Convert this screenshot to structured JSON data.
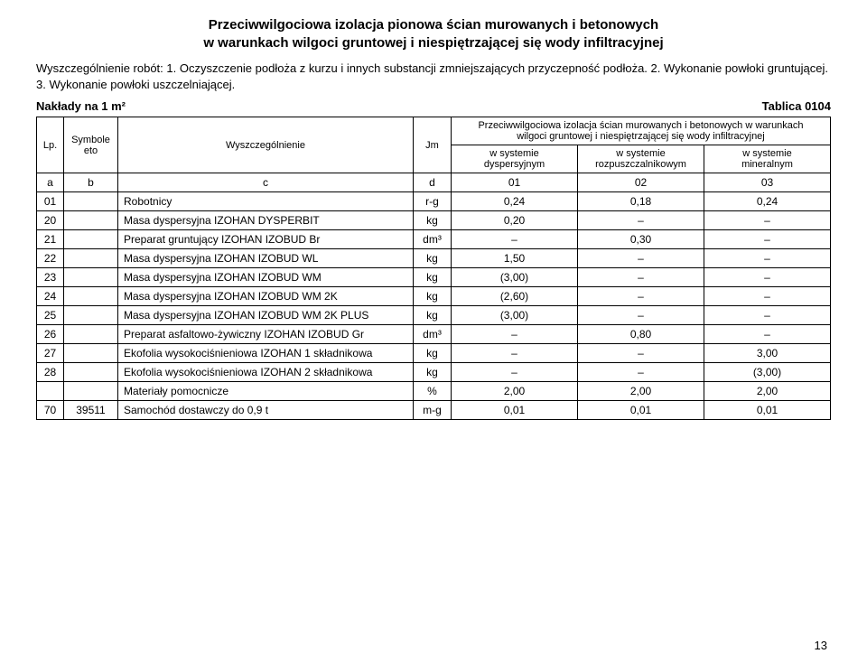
{
  "title_l1": "Przeciwwilgociowa izolacja pionowa ścian murowanych i betonowych",
  "title_l2": "w warunkach wilgoci gruntowej i niespiętrzającej się wody infiltracyjnej",
  "desc": "Wyszczególnienie robót: 1. Oczyszczenie podłoża z kurzu i innych substancji zmniejszających przyczepność podłoża. 2. Wykonanie powłoki gruntującej. 3. Wykonanie powłoki uszczelniającej.",
  "naklady": "Nakłady na 1 m²",
  "tablica": "Tablica 0104",
  "hdr": {
    "lp": "Lp.",
    "symbole": "Symbole eto",
    "wys": "Wyszczególnienie",
    "jm": "Jm",
    "group_l1": "Przeciwwilgociowa izolacja ścian murowanych i betonowych w warunkach",
    "group_l2": "wilgoci gruntowej i niespiętrzającej się wody infiltracyjnej",
    "c1a": "w systemie",
    "c1b": "dyspersyjnym",
    "c2a": "w systemie",
    "c2b": "rozpuszczalnikowym",
    "c3a": "w systemie",
    "c3b": "mineralnym",
    "la": "a",
    "lb": "b",
    "lc": "c",
    "ld": "d",
    "l01": "01",
    "l02": "02",
    "l03": "03"
  },
  "rows": [
    {
      "lp": "01",
      "sym": "",
      "name": "Robotnicy",
      "jm": "r-g",
      "v1": "0,24",
      "v2": "0,18",
      "v3": "0,24"
    },
    {
      "lp": "20",
      "sym": "",
      "name": "Masa dyspersyjna IZOHAN DYSPERBIT",
      "jm": "kg",
      "v1": "0,20",
      "v2": "–",
      "v3": "–"
    },
    {
      "lp": "21",
      "sym": "",
      "name": "Preparat gruntujący IZOHAN IZOBUD Br",
      "jm": "dm³",
      "v1": "–",
      "v2": "0,30",
      "v3": "–"
    },
    {
      "lp": "22",
      "sym": "",
      "name": "Masa dyspersyjna IZOHAN IZOBUD WL",
      "jm": "kg",
      "v1": "1,50",
      "v2": "–",
      "v3": "–"
    },
    {
      "lp": "23",
      "sym": "",
      "name": "Masa dyspersyjna IZOHAN IZOBUD WM",
      "jm": "kg",
      "v1": "(3,00)",
      "v2": "–",
      "v3": "–"
    },
    {
      "lp": "24",
      "sym": "",
      "name": "Masa dyspersyjna IZOHAN IZOBUD WM 2K",
      "jm": "kg",
      "v1": "(2,60)",
      "v2": "–",
      "v3": "–"
    },
    {
      "lp": "25",
      "sym": "",
      "name": "Masa dyspersyjna IZOHAN IZOBUD WM 2K PLUS",
      "jm": "kg",
      "v1": "(3,00)",
      "v2": "–",
      "v3": "–"
    },
    {
      "lp": "26",
      "sym": "",
      "name": "Preparat asfaltowo-żywiczny IZOHAN IZOBUD Gr",
      "jm": "dm³",
      "v1": "–",
      "v2": "0,80",
      "v3": "–"
    },
    {
      "lp": "27",
      "sym": "",
      "name": "Ekofolia wysokociśnieniowa IZOHAN 1 składnikowa",
      "jm": "kg",
      "v1": "–",
      "v2": "–",
      "v3": "3,00"
    },
    {
      "lp": "28",
      "sym": "",
      "name": "Ekofolia wysokociśnieniowa IZOHAN 2 składnikowa",
      "jm": "kg",
      "v1": "–",
      "v2": "–",
      "v3": "(3,00)"
    },
    {
      "lp": "",
      "sym": "",
      "name": "Materiały pomocnicze",
      "jm": "%",
      "v1": "2,00",
      "v2": "2,00",
      "v3": "2,00"
    },
    {
      "lp": "70",
      "sym": "39511",
      "name": "Samochód dostawczy do 0,9 t",
      "jm": "m-g",
      "v1": "0,01",
      "v2": "0,01",
      "v3": "0,01"
    }
  ],
  "page": "13"
}
